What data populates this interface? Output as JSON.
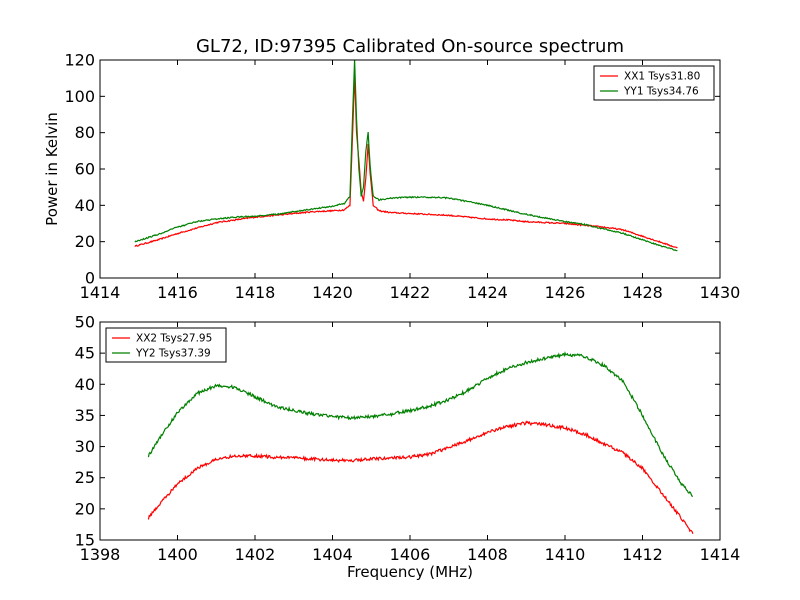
{
  "chart_data": [
    {
      "type": "line",
      "title": "GL72, ID:97395 Calibrated On-source spectrum",
      "xlabel": "",
      "ylabel": "Power in Kelvin",
      "xlim": [
        1414,
        1430
      ],
      "ylim": [
        0,
        120
      ],
      "x_ticks": [
        1414,
        1416,
        1418,
        1420,
        1422,
        1424,
        1426,
        1428,
        1430
      ],
      "y_ticks": [
        0,
        20,
        40,
        60,
        80,
        100,
        120
      ],
      "grid": false,
      "legend_position": "top-right",
      "series": [
        {
          "name": "XX1 Tsys31.80",
          "color": "#ff0000",
          "points": [
            [
              1414.9,
              17.5
            ],
            [
              1415.5,
              21
            ],
            [
              1416,
              24.5
            ],
            [
              1416.5,
              27.5
            ],
            [
              1417,
              30.5
            ],
            [
              1417.5,
              32
            ],
            [
              1418,
              33.5
            ],
            [
              1418.5,
              34.5
            ],
            [
              1419,
              35.5
            ],
            [
              1419.5,
              36.5
            ],
            [
              1420,
              37
            ],
            [
              1420.3,
              37.5
            ],
            [
              1420.45,
              40
            ],
            [
              1420.52,
              80
            ],
            [
              1420.57,
              112
            ],
            [
              1420.62,
              80
            ],
            [
              1420.68,
              65
            ],
            [
              1420.74,
              48
            ],
            [
              1420.8,
              42
            ],
            [
              1420.86,
              55
            ],
            [
              1420.92,
              74
            ],
            [
              1420.97,
              58
            ],
            [
              1421.05,
              40
            ],
            [
              1421.2,
              37
            ],
            [
              1421.5,
              36
            ],
            [
              1422,
              35.5
            ],
            [
              1422.5,
              35
            ],
            [
              1423,
              34.5
            ],
            [
              1423.5,
              33.5
            ],
            [
              1424,
              32.5
            ],
            [
              1424.5,
              32
            ],
            [
              1425,
              31
            ],
            [
              1425.5,
              30.5
            ],
            [
              1426,
              30
            ],
            [
              1426.5,
              29
            ],
            [
              1427,
              28
            ],
            [
              1427.5,
              26.5
            ],
            [
              1428,
              23
            ],
            [
              1428.5,
              19.5
            ],
            [
              1428.9,
              16.5
            ]
          ]
        },
        {
          "name": "YY1 Tsys34.76",
          "color": "#008000",
          "points": [
            [
              1414.9,
              20
            ],
            [
              1415.5,
              24
            ],
            [
              1416,
              28
            ],
            [
              1416.5,
              31
            ],
            [
              1417,
              32.5
            ],
            [
              1417.5,
              33.5
            ],
            [
              1418,
              34
            ],
            [
              1418.5,
              35
            ],
            [
              1419,
              36.5
            ],
            [
              1419.5,
              38
            ],
            [
              1420,
              39.5
            ],
            [
              1420.3,
              41
            ],
            [
              1420.45,
              45
            ],
            [
              1420.52,
              90
            ],
            [
              1420.57,
              120
            ],
            [
              1420.62,
              88
            ],
            [
              1420.68,
              60
            ],
            [
              1420.74,
              45
            ],
            [
              1420.8,
              50
            ],
            [
              1420.86,
              70
            ],
            [
              1420.92,
              80
            ],
            [
              1420.97,
              62
            ],
            [
              1421.05,
              45
            ],
            [
              1421.2,
              43
            ],
            [
              1421.5,
              44
            ],
            [
              1422,
              44.5
            ],
            [
              1422.5,
              44.5
            ],
            [
              1423,
              44
            ],
            [
              1423.5,
              42
            ],
            [
              1424,
              40
            ],
            [
              1424.5,
              37.5
            ],
            [
              1425,
              35
            ],
            [
              1425.5,
              33
            ],
            [
              1426,
              31
            ],
            [
              1426.5,
              29.5
            ],
            [
              1427,
              27
            ],
            [
              1427.5,
              24.5
            ],
            [
              1428,
              21
            ],
            [
              1428.5,
              17.5
            ],
            [
              1428.9,
              15
            ]
          ]
        }
      ]
    },
    {
      "type": "line",
      "title": "",
      "xlabel": "Frequency (MHz)",
      "ylabel": "",
      "xlim": [
        1398,
        1414
      ],
      "ylim": [
        15,
        50
      ],
      "x_ticks": [
        1398,
        1400,
        1402,
        1404,
        1406,
        1408,
        1410,
        1412,
        1414
      ],
      "y_ticks": [
        15,
        20,
        25,
        30,
        35,
        40,
        45,
        50
      ],
      "grid": false,
      "legend_position": "top-left",
      "series": [
        {
          "name": "XX2 Tsys27.95",
          "color": "#ff0000",
          "points": [
            [
              1399.25,
              18.5
            ],
            [
              1399.5,
              20.5
            ],
            [
              1400,
              24
            ],
            [
              1400.5,
              26.5
            ],
            [
              1401,
              28
            ],
            [
              1401.5,
              28.5
            ],
            [
              1402,
              28.5
            ],
            [
              1402.5,
              28.3
            ],
            [
              1403,
              28.2
            ],
            [
              1403.5,
              28
            ],
            [
              1404,
              27.8
            ],
            [
              1404.5,
              27.8
            ],
            [
              1405,
              28
            ],
            [
              1405.5,
              28.2
            ],
            [
              1406,
              28.3
            ],
            [
              1406.5,
              28.8
            ],
            [
              1407,
              29.8
            ],
            [
              1407.5,
              31
            ],
            [
              1408,
              32.3
            ],
            [
              1408.5,
              33.2
            ],
            [
              1409,
              33.8
            ],
            [
              1409.5,
              33.5
            ],
            [
              1410,
              33
            ],
            [
              1410.5,
              32
            ],
            [
              1411,
              30.5
            ],
            [
              1411.5,
              29
            ],
            [
              1412,
              26.5
            ],
            [
              1412.5,
              22.5
            ],
            [
              1413,
              18.5
            ],
            [
              1413.3,
              16
            ]
          ]
        },
        {
          "name": "YY2 Tsys37.39",
          "color": "#008000",
          "points": [
            [
              1399.25,
              28.5
            ],
            [
              1399.5,
              31
            ],
            [
              1400,
              35.5
            ],
            [
              1400.5,
              38.5
            ],
            [
              1401,
              39.8
            ],
            [
              1401.5,
              39.5
            ],
            [
              1402,
              38
            ],
            [
              1402.5,
              36.5
            ],
            [
              1403,
              35.8
            ],
            [
              1403.5,
              35.2
            ],
            [
              1404,
              34.8
            ],
            [
              1404.5,
              34.6
            ],
            [
              1405,
              34.8
            ],
            [
              1405.5,
              35.2
            ],
            [
              1406,
              35.8
            ],
            [
              1406.5,
              36.5
            ],
            [
              1407,
              37.5
            ],
            [
              1407.5,
              39
            ],
            [
              1408,
              41
            ],
            [
              1408.5,
              42.5
            ],
            [
              1409,
              43.5
            ],
            [
              1409.5,
              44.2
            ],
            [
              1410,
              44.8
            ],
            [
              1410.5,
              44.5
            ],
            [
              1411,
              43
            ],
            [
              1411.5,
              40.5
            ],
            [
              1412,
              35
            ],
            [
              1412.5,
              29
            ],
            [
              1413,
              24
            ],
            [
              1413.3,
              22
            ]
          ]
        }
      ]
    }
  ]
}
